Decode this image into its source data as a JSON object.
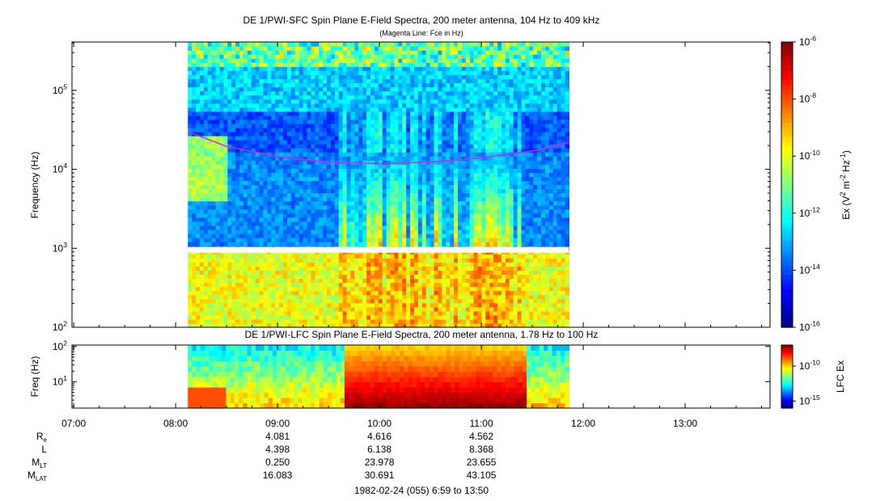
{
  "chart_data": [
    {
      "type": "heatmap",
      "title": "DE 1/PWI-SFC  Spin Plane E-Field Spectra, 200 meter antenna, 104 Hz to 409 kHz",
      "subtitle": "(Magenta Line: Fce in Hz)",
      "ylabel": "Frequency (Hz)",
      "yscale": "log",
      "ylim": [
        100,
        409000
      ],
      "yticks": [
        {
          "value": 100,
          "base": "10",
          "exp": "2"
        },
        {
          "value": 1000,
          "base": "10",
          "exp": "3"
        },
        {
          "value": 10000,
          "base": "10",
          "exp": "4"
        },
        {
          "value": 100000,
          "base": "10",
          "exp": "5"
        }
      ],
      "data_time_range_hours": [
        8.12,
        11.86
      ],
      "gap_band_hz": [
        880,
        1040
      ],
      "colorbar": {
        "label": "Ex (V² m⁻² Hz⁻¹)",
        "label_parts": [
          "Ex (V",
          "2",
          " m",
          "-2",
          " Hz",
          "-1",
          ")"
        ],
        "scale": "log",
        "range": [
          1e-16,
          1e-06
        ],
        "colormap": "jet",
        "ticks": [
          {
            "value": 1e-06,
            "base": "10",
            "exp": "-6"
          },
          {
            "value": 1e-08,
            "base": "10",
            "exp": "-8"
          },
          {
            "value": 1e-10,
            "base": "10",
            "exp": "-10"
          },
          {
            "value": 1e-12,
            "base": "10",
            "exp": "-12"
          },
          {
            "value": 1e-14,
            "base": "10",
            "exp": "-14"
          },
          {
            "value": 1e-16,
            "base": "10",
            "exp": "-16"
          }
        ]
      },
      "line_series": {
        "name": "Fce",
        "color": "#e020e0",
        "x_hours": [
          8.12,
          8.5,
          9.0,
          9.5,
          10.0,
          10.5,
          11.0,
          11.5,
          11.86
        ],
        "y_hz": [
          30000,
          19500,
          14500,
          12300,
          11800,
          12300,
          14000,
          17000,
          22000
        ]
      }
    },
    {
      "type": "heatmap",
      "title": "DE 1/PWI-LFC  Spin Plane E-Field Spectra, 200 meter antenna, 1.78 Hz to 100 Hz",
      "ylabel": "Freq (Hz)",
      "yscale": "log",
      "ylim": [
        1.78,
        110
      ],
      "yticks": [
        {
          "value": 10,
          "base": "10",
          "exp": "1"
        },
        {
          "value": 100,
          "base": "10",
          "exp": "2"
        }
      ],
      "data_time_range_hours": [
        8.12,
        11.86
      ],
      "colorbar": {
        "label": "LFC Ex",
        "scale": "log",
        "range": [
          1e-16,
          1e-07
        ],
        "colormap": "jet",
        "ticks": [
          {
            "value": 1e-10,
            "base": "10",
            "exp": "-10"
          },
          {
            "value": 1e-15,
            "base": "10",
            "exp": "-15"
          }
        ]
      }
    }
  ],
  "time_axis": {
    "range_hours": [
      6.983,
      13.833
    ],
    "ticks": [
      {
        "hour": 7,
        "label": "07:00"
      },
      {
        "hour": 8,
        "label": "08:00"
      },
      {
        "hour": 9,
        "label": "09:00"
      },
      {
        "hour": 10,
        "label": "10:00"
      },
      {
        "hour": 11,
        "label": "11:00"
      },
      {
        "hour": 12,
        "label": "12:00"
      },
      {
        "hour": 13,
        "label": "13:00"
      }
    ]
  },
  "ephemeris": {
    "hours": [
      9,
      10,
      11
    ],
    "rows": [
      {
        "name": "R",
        "sub": "e",
        "values": [
          "4.081",
          "4.616",
          "4.562"
        ]
      },
      {
        "name": "L",
        "sub": "",
        "values": [
          "4.398",
          "6.138",
          "8.368"
        ]
      },
      {
        "name": "M",
        "sub": "LT",
        "values": [
          "0.250",
          "23.978",
          "23.655"
        ]
      },
      {
        "name": "M",
        "sub": "LAT",
        "values": [
          "16.083",
          "30.691",
          "43.105"
        ]
      }
    ]
  },
  "footer": "1982-02-24 (055) 6:59 to 13:50"
}
